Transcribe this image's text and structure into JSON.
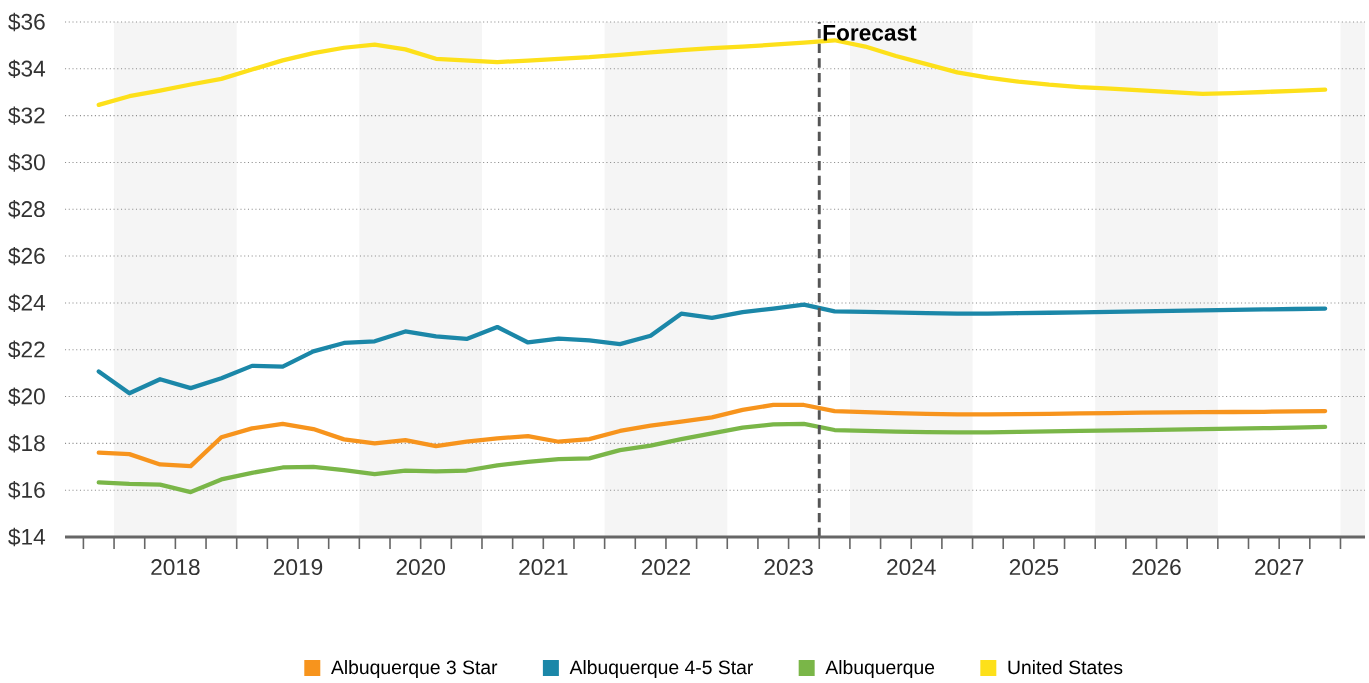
{
  "chart_data": {
    "type": "line",
    "x": [
      2017.875,
      2018.125,
      2018.375,
      2018.625,
      2018.875,
      2019.125,
      2019.375,
      2019.625,
      2019.875,
      2020.125,
      2020.375,
      2020.625,
      2020.875,
      2021.125,
      2021.375,
      2021.625,
      2021.875,
      2022.125,
      2022.375,
      2022.625,
      2022.875,
      2023.125,
      2023.375,
      2023.625,
      2023.875,
      2024.125,
      2024.375,
      2024.625,
      2024.875,
      2025.125,
      2025.375,
      2025.625,
      2025.875,
      2026.125,
      2026.375,
      2026.625,
      2026.875,
      2027.125,
      2027.375,
      2027.625,
      2027.875
    ],
    "series": [
      {
        "name": "Albuquerque 3 Star",
        "color": "#f7941d",
        "values": [
          17.6,
          17.54,
          17.1,
          17.03,
          18.26,
          18.64,
          18.83,
          18.61,
          18.17,
          18.0,
          18.14,
          17.88,
          18.07,
          18.21,
          18.31,
          18.07,
          18.18,
          18.53,
          18.76,
          18.93,
          19.11,
          19.43,
          19.64,
          19.64,
          19.38,
          19.33,
          19.29,
          19.26,
          19.24,
          19.24,
          19.25,
          19.26,
          19.28,
          19.29,
          19.31,
          19.32,
          19.33,
          19.34,
          19.35,
          19.37,
          19.38
        ]
      },
      {
        "name": "Albuquerque 4-5 Star",
        "color": "#1b87a8",
        "values": [
          21.07,
          20.14,
          20.74,
          20.36,
          20.78,
          21.31,
          21.28,
          21.93,
          22.29,
          22.36,
          22.78,
          22.57,
          22.46,
          22.97,
          22.31,
          22.47,
          22.4,
          22.24,
          22.6,
          23.54,
          23.36,
          23.61,
          23.76,
          23.93,
          23.64,
          23.62,
          23.59,
          23.56,
          23.54,
          23.54,
          23.56,
          23.58,
          23.6,
          23.62,
          23.64,
          23.66,
          23.68,
          23.7,
          23.72,
          23.74,
          23.76
        ]
      },
      {
        "name": "Albuquerque",
        "color": "#7ab648",
        "values": [
          16.33,
          16.27,
          16.24,
          15.92,
          16.46,
          16.74,
          16.97,
          17.0,
          16.86,
          16.69,
          16.84,
          16.8,
          16.84,
          17.06,
          17.21,
          17.33,
          17.36,
          17.71,
          17.9,
          18.18,
          18.43,
          18.67,
          18.81,
          18.83,
          18.57,
          18.53,
          18.5,
          18.48,
          18.47,
          18.47,
          18.49,
          18.51,
          18.53,
          18.55,
          18.57,
          18.59,
          18.61,
          18.63,
          18.65,
          18.67,
          18.7
        ]
      },
      {
        "name": "United States",
        "color": "#fde01a",
        "values": [
          32.46,
          32.83,
          33.07,
          33.33,
          33.57,
          33.97,
          34.36,
          34.67,
          34.9,
          35.03,
          34.83,
          34.43,
          34.36,
          34.29,
          34.35,
          34.43,
          34.5,
          34.6,
          34.7,
          34.8,
          34.88,
          34.95,
          35.03,
          35.12,
          35.22,
          34.95,
          34.55,
          34.2,
          33.85,
          33.62,
          33.45,
          33.32,
          33.22,
          33.15,
          33.08,
          33.0,
          32.93,
          32.96,
          33.01,
          33.06,
          33.11
        ]
      }
    ],
    "xlim": [
      2017.6,
      2028.2
    ],
    "xticks": [
      {
        "value": 2017.75,
        "label": null
      },
      {
        "value": 2018,
        "label": null
      },
      {
        "value": 2018.25,
        "label": null
      },
      {
        "value": 2018.5,
        "label": "2018"
      },
      {
        "value": 2018.75,
        "label": null
      },
      {
        "value": 2019,
        "label": null
      },
      {
        "value": 2019.25,
        "label": null
      },
      {
        "value": 2019.5,
        "label": "2019"
      },
      {
        "value": 2019.75,
        "label": null
      },
      {
        "value": 2020,
        "label": null
      },
      {
        "value": 2020.25,
        "label": null
      },
      {
        "value": 2020.5,
        "label": "2020"
      },
      {
        "value": 2020.75,
        "label": null
      },
      {
        "value": 2021,
        "label": null
      },
      {
        "value": 2021.25,
        "label": null
      },
      {
        "value": 2021.5,
        "label": "2021"
      },
      {
        "value": 2021.75,
        "label": null
      },
      {
        "value": 2022,
        "label": null
      },
      {
        "value": 2022.25,
        "label": null
      },
      {
        "value": 2022.5,
        "label": "2022"
      },
      {
        "value": 2022.75,
        "label": null
      },
      {
        "value": 2023,
        "label": null
      },
      {
        "value": 2023.25,
        "label": null
      },
      {
        "value": 2023.5,
        "label": "2023"
      },
      {
        "value": 2023.75,
        "label": null
      },
      {
        "value": 2024,
        "label": null
      },
      {
        "value": 2024.25,
        "label": null
      },
      {
        "value": 2024.5,
        "label": "2024"
      },
      {
        "value": 2024.75,
        "label": null
      },
      {
        "value": 2025,
        "label": null
      },
      {
        "value": 2025.25,
        "label": null
      },
      {
        "value": 2025.5,
        "label": "2025"
      },
      {
        "value": 2025.75,
        "label": null
      },
      {
        "value": 2026,
        "label": null
      },
      {
        "value": 2026.25,
        "label": null
      },
      {
        "value": 2026.5,
        "label": "2026"
      },
      {
        "value": 2026.75,
        "label": null
      },
      {
        "value": 2027,
        "label": null
      },
      {
        "value": 2027.25,
        "label": null
      },
      {
        "value": 2027.5,
        "label": "2027"
      },
      {
        "value": 2027.75,
        "label": null
      },
      {
        "value": 2028,
        "label": null
      }
    ],
    "ylim": [
      14,
      36
    ],
    "yticks": [
      {
        "value": 14,
        "label": "$14"
      },
      {
        "value": 16,
        "label": "$16"
      },
      {
        "value": 18,
        "label": "$18"
      },
      {
        "value": 20,
        "label": "$20"
      },
      {
        "value": 22,
        "label": "$22"
      },
      {
        "value": 24,
        "label": "$24"
      },
      {
        "value": 26,
        "label": "$26"
      },
      {
        "value": 28,
        "label": "$28"
      },
      {
        "value": 30,
        "label": "$30"
      },
      {
        "value": 32,
        "label": "$32"
      },
      {
        "value": 34,
        "label": "$34"
      },
      {
        "value": 36,
        "label": "$36"
      }
    ],
    "ref_lines": [
      {
        "axis": "x",
        "value": 2023.75,
        "label": "Forecast",
        "color": "#555555",
        "line_style": "dashed"
      }
    ],
    "bands": [
      {
        "axis": "x",
        "from": 2018,
        "to": 2019,
        "color": "#f5f5f5"
      },
      {
        "axis": "x",
        "from": 2020,
        "to": 2021,
        "color": "#f5f5f5"
      },
      {
        "axis": "x",
        "from": 2022,
        "to": 2023,
        "color": "#f5f5f5"
      },
      {
        "axis": "x",
        "from": 2024,
        "to": 2025,
        "color": "#f5f5f5"
      },
      {
        "axis": "x",
        "from": 2026,
        "to": 2027,
        "color": "#f5f5f5"
      },
      {
        "axis": "x",
        "from": 2028,
        "to": 2028.2,
        "color": "#f5f5f5"
      }
    ],
    "grid": "y",
    "legend": "bottom",
    "line_style": "solid"
  }
}
